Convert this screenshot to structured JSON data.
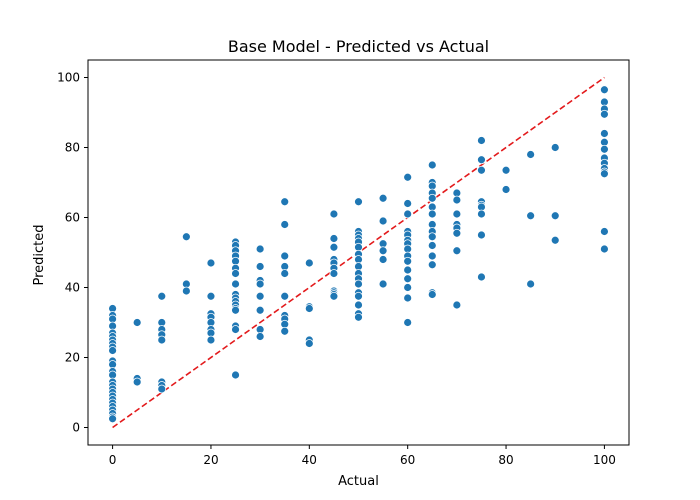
{
  "chart_data": {
    "type": "scatter",
    "title": "Base Model - Predicted vs Actual",
    "xlabel": "Actual",
    "ylabel": "Predicted",
    "xlim": [
      -5,
      105
    ],
    "ylim": [
      -5,
      105
    ],
    "xticks": [
      0,
      20,
      40,
      60,
      80,
      100
    ],
    "yticks": [
      0,
      20,
      40,
      60,
      80,
      100
    ],
    "grid": false,
    "point_color": "#1f77b4",
    "reference_line": {
      "x": [
        0,
        100
      ],
      "y": [
        0,
        100
      ],
      "color": "#e31a1c",
      "style": "dashed"
    },
    "points": [
      [
        0,
        34
      ],
      [
        0,
        32
      ],
      [
        0,
        31
      ],
      [
        0,
        29
      ],
      [
        0,
        27
      ],
      [
        0,
        26
      ],
      [
        0,
        25
      ],
      [
        0,
        24
      ],
      [
        0,
        23
      ],
      [
        0,
        22
      ],
      [
        0,
        19
      ],
      [
        0,
        18
      ],
      [
        0,
        16
      ],
      [
        0,
        15
      ],
      [
        0,
        13
      ],
      [
        0,
        12
      ],
      [
        0,
        11
      ],
      [
        0,
        10
      ],
      [
        0,
        9
      ],
      [
        0,
        8
      ],
      [
        0,
        7
      ],
      [
        0,
        6
      ],
      [
        0,
        5
      ],
      [
        0,
        4
      ],
      [
        0,
        3
      ],
      [
        0,
        2.5
      ],
      [
        5,
        30
      ],
      [
        5,
        14
      ],
      [
        5,
        13
      ],
      [
        10,
        37.5
      ],
      [
        10,
        30
      ],
      [
        10,
        28
      ],
      [
        10,
        26.5
      ],
      [
        10,
        25
      ],
      [
        10,
        13
      ],
      [
        10,
        12
      ],
      [
        10,
        11
      ],
      [
        15,
        54.5
      ],
      [
        15,
        41
      ],
      [
        15,
        39
      ],
      [
        20,
        47
      ],
      [
        20,
        37.5
      ],
      [
        20,
        32.5
      ],
      [
        20,
        31.5
      ],
      [
        20,
        30
      ],
      [
        20,
        28
      ],
      [
        20,
        27
      ],
      [
        20,
        25
      ],
      [
        25,
        53
      ],
      [
        25,
        52
      ],
      [
        25,
        50.5
      ],
      [
        25,
        49
      ],
      [
        25,
        47.5
      ],
      [
        25,
        45.5
      ],
      [
        25,
        44
      ],
      [
        25,
        41
      ],
      [
        25,
        38
      ],
      [
        25,
        37
      ],
      [
        25,
        36
      ],
      [
        25,
        35
      ],
      [
        25,
        34
      ],
      [
        25,
        33.5
      ],
      [
        25,
        29
      ],
      [
        25,
        28
      ],
      [
        25,
        15
      ],
      [
        30,
        51
      ],
      [
        30,
        46
      ],
      [
        30,
        42
      ],
      [
        30,
        41
      ],
      [
        30,
        37.5
      ],
      [
        30,
        33.5
      ],
      [
        30,
        28
      ],
      [
        30,
        26
      ],
      [
        35,
        64.5
      ],
      [
        35,
        58
      ],
      [
        35,
        49
      ],
      [
        35,
        46
      ],
      [
        35,
        44
      ],
      [
        35,
        37.5
      ],
      [
        35,
        32
      ],
      [
        35,
        31
      ],
      [
        35,
        29.5
      ],
      [
        35,
        27.5
      ],
      [
        40,
        47
      ],
      [
        40,
        34.5
      ],
      [
        40,
        34
      ],
      [
        40,
        25
      ],
      [
        40,
        24
      ],
      [
        45,
        61
      ],
      [
        45,
        54
      ],
      [
        45,
        51.5
      ],
      [
        45,
        48
      ],
      [
        45,
        47
      ],
      [
        45,
        45.5
      ],
      [
        45,
        44
      ],
      [
        45,
        39
      ],
      [
        45,
        38.5
      ],
      [
        45,
        38
      ],
      [
        45,
        37.5
      ],
      [
        50,
        64.5
      ],
      [
        50,
        56
      ],
      [
        50,
        55
      ],
      [
        50,
        54
      ],
      [
        50,
        53
      ],
      [
        50,
        51.5
      ],
      [
        50,
        49.5
      ],
      [
        50,
        48
      ],
      [
        50,
        46
      ],
      [
        50,
        44
      ],
      [
        50,
        42.5
      ],
      [
        50,
        41
      ],
      [
        50,
        38.5
      ],
      [
        50,
        37.5
      ],
      [
        50,
        35
      ],
      [
        50,
        32.5
      ],
      [
        50,
        31.5
      ],
      [
        55,
        65.5
      ],
      [
        55,
        59
      ],
      [
        55,
        52.5
      ],
      [
        55,
        50.5
      ],
      [
        55,
        48
      ],
      [
        55,
        41
      ],
      [
        60,
        71.5
      ],
      [
        60,
        64
      ],
      [
        60,
        61
      ],
      [
        60,
        56
      ],
      [
        60,
        55
      ],
      [
        60,
        53.5
      ],
      [
        60,
        52.5
      ],
      [
        60,
        51
      ],
      [
        60,
        49
      ],
      [
        60,
        47.5
      ],
      [
        60,
        45
      ],
      [
        60,
        42.5
      ],
      [
        60,
        40
      ],
      [
        60,
        37
      ],
      [
        60,
        30
      ],
      [
        65,
        75
      ],
      [
        65,
        70
      ],
      [
        65,
        69
      ],
      [
        65,
        67
      ],
      [
        65,
        65.5
      ],
      [
        65,
        63
      ],
      [
        65,
        61
      ],
      [
        65,
        58
      ],
      [
        65,
        56
      ],
      [
        65,
        54.5
      ],
      [
        65,
        52
      ],
      [
        65,
        49
      ],
      [
        65,
        46.5
      ],
      [
        65,
        38.5
      ],
      [
        65,
        38
      ],
      [
        70,
        67
      ],
      [
        70,
        65
      ],
      [
        70,
        61
      ],
      [
        70,
        58
      ],
      [
        70,
        57
      ],
      [
        70,
        55.5
      ],
      [
        70,
        50.5
      ],
      [
        70,
        35
      ],
      [
        75,
        82
      ],
      [
        75,
        76.5
      ],
      [
        75,
        73.5
      ],
      [
        75,
        64.5
      ],
      [
        75,
        63.5
      ],
      [
        75,
        63
      ],
      [
        75,
        61
      ],
      [
        75,
        55
      ],
      [
        75,
        43
      ],
      [
        80,
        73.5
      ],
      [
        80,
        68
      ],
      [
        85,
        78
      ],
      [
        85,
        60.5
      ],
      [
        85,
        41
      ],
      [
        90,
        80
      ],
      [
        90,
        60.5
      ],
      [
        90,
        53.5
      ],
      [
        100,
        96.5
      ],
      [
        100,
        93
      ],
      [
        100,
        91
      ],
      [
        100,
        89.5
      ],
      [
        100,
        84
      ],
      [
        100,
        81.5
      ],
      [
        100,
        79.5
      ],
      [
        100,
        77
      ],
      [
        100,
        75.5
      ],
      [
        100,
        74
      ],
      [
        100,
        73
      ],
      [
        100,
        72.5
      ],
      [
        100,
        56
      ],
      [
        100,
        51
      ]
    ]
  }
}
